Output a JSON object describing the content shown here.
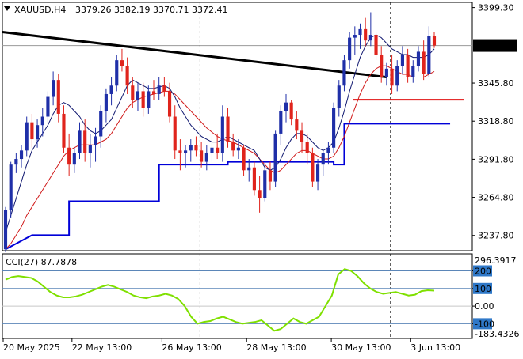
{
  "header": {
    "symbol_label": "XAUUSD,H4",
    "ohlc_label": "3379.26 3382.19 3370.71 3372.41"
  },
  "colors": {
    "bull": "#1f2fa8",
    "bear": "#e0241c",
    "grid": "#000000",
    "price_tag_bg": "#000000",
    "fast_ma": "#101870",
    "slow_ma": "#d01818",
    "support_line": "#0000d8",
    "trendline": "#000000",
    "resistance_line": "#e01010",
    "cci_line": "#7fe000",
    "level_tag_bg": "#2f78c8"
  },
  "chart_data": [
    {
      "type": "candlestick",
      "title": "XAUUSD,H4",
      "last_price": 3372.41,
      "last_price_label": "3372.41",
      "ylim": [
        3227,
        3403
      ],
      "y_ticks": [
        "3399.30",
        "3345.80",
        "3318.80",
        "3291.80",
        "3264.80",
        "3237.80"
      ],
      "x_tick_labels": [
        "20 May 2025",
        "22 May 13:00",
        "26 May 13:00",
        "28 May 13:00",
        "30 May 13:00",
        "3 Jun 13:00"
      ],
      "candles": [
        [
          3228,
          3258,
          3226,
          3256
        ],
        [
          3256,
          3290,
          3250,
          3288
        ],
        [
          3288,
          3296,
          3282,
          3292
        ],
        [
          3292,
          3302,
          3286,
          3298
        ],
        [
          3298,
          3322,
          3294,
          3318
        ],
        [
          3318,
          3324,
          3300,
          3306
        ],
        [
          3306,
          3320,
          3300,
          3316
        ],
        [
          3316,
          3328,
          3308,
          3322
        ],
        [
          3322,
          3340,
          3318,
          3336
        ],
        [
          3336,
          3354,
          3330,
          3348
        ],
        [
          3348,
          3352,
          3318,
          3324
        ],
        [
          3324,
          3330,
          3296,
          3300
        ],
        [
          3300,
          3310,
          3280,
          3288
        ],
        [
          3288,
          3300,
          3282,
          3296
        ],
        [
          3296,
          3318,
          3292,
          3312
        ],
        [
          3312,
          3320,
          3290,
          3296
        ],
        [
          3296,
          3310,
          3286,
          3302
        ],
        [
          3302,
          3314,
          3290,
          3308
        ],
        [
          3308,
          3330,
          3300,
          3326
        ],
        [
          3326,
          3342,
          3318,
          3338
        ],
        [
          3338,
          3350,
          3330,
          3344
        ],
        [
          3344,
          3366,
          3340,
          3362
        ],
        [
          3362,
          3370,
          3354,
          3358
        ],
        [
          3358,
          3364,
          3338,
          3344
        ],
        [
          3344,
          3350,
          3328,
          3334
        ],
        [
          3334,
          3346,
          3326,
          3340
        ],
        [
          3340,
          3346,
          3322,
          3328
        ],
        [
          3328,
          3344,
          3324,
          3340
        ],
        [
          3340,
          3348,
          3334,
          3338
        ],
        [
          3338,
          3350,
          3334,
          3344
        ],
        [
          3344,
          3350,
          3336,
          3340
        ],
        [
          3340,
          3346,
          3318,
          3322
        ],
        [
          3322,
          3330,
          3292,
          3298
        ],
        [
          3298,
          3306,
          3284,
          3296
        ],
        [
          3296,
          3302,
          3286,
          3298
        ],
        [
          3298,
          3306,
          3290,
          3302
        ],
        [
          3302,
          3308,
          3294,
          3298
        ],
        [
          3298,
          3304,
          3286,
          3290
        ],
        [
          3290,
          3302,
          3284,
          3296
        ],
        [
          3296,
          3308,
          3290,
          3300
        ],
        [
          3300,
          3310,
          3292,
          3296
        ],
        [
          3296,
          3330,
          3290,
          3322
        ],
        [
          3322,
          3328,
          3300,
          3304
        ],
        [
          3304,
          3310,
          3294,
          3298
        ],
        [
          3298,
          3306,
          3292,
          3300
        ],
        [
          3300,
          3302,
          3280,
          3284
        ],
        [
          3284,
          3292,
          3276,
          3286
        ],
        [
          3286,
          3290,
          3266,
          3270
        ],
        [
          3270,
          3280,
          3254,
          3264
        ],
        [
          3264,
          3288,
          3262,
          3284
        ],
        [
          3284,
          3290,
          3270,
          3276
        ],
        [
          3276,
          3312,
          3272,
          3310
        ],
        [
          3310,
          3330,
          3302,
          3326
        ],
        [
          3326,
          3338,
          3318,
          3332
        ],
        [
          3332,
          3334,
          3316,
          3320
        ],
        [
          3320,
          3326,
          3306,
          3312
        ],
        [
          3312,
          3318,
          3296,
          3304
        ],
        [
          3304,
          3310,
          3288,
          3296
        ],
        [
          3296,
          3300,
          3272,
          3276
        ],
        [
          3276,
          3292,
          3270,
          3288
        ],
        [
          3288,
          3298,
          3280,
          3296
        ],
        [
          3296,
          3304,
          3288,
          3300
        ],
        [
          3300,
          3332,
          3296,
          3328
        ],
        [
          3328,
          3348,
          3322,
          3344
        ],
        [
          3344,
          3366,
          3340,
          3362
        ],
        [
          3362,
          3382,
          3356,
          3378
        ],
        [
          3378,
          3386,
          3366,
          3380
        ],
        [
          3380,
          3388,
          3370,
          3384
        ],
        [
          3384,
          3392,
          3372,
          3376
        ],
        [
          3376,
          3396,
          3372,
          3380
        ],
        [
          3380,
          3382,
          3362,
          3366
        ],
        [
          3366,
          3372,
          3346,
          3350
        ],
        [
          3350,
          3360,
          3344,
          3356
        ],
        [
          3356,
          3366,
          3338,
          3344
        ],
        [
          3344,
          3362,
          3340,
          3358
        ],
        [
          3358,
          3372,
          3352,
          3366
        ],
        [
          3366,
          3370,
          3346,
          3350
        ],
        [
          3350,
          3362,
          3346,
          3358
        ],
        [
          3358,
          3372,
          3354,
          3368
        ],
        [
          3368,
          3376,
          3348,
          3352
        ],
        [
          3352,
          3386,
          3350,
          3379.26
        ],
        [
          3379.26,
          3382.19,
          3370.71,
          3372.41
        ]
      ],
      "fast_ma": [
        3240,
        3252,
        3264,
        3276,
        3288,
        3298,
        3304,
        3310,
        3316,
        3324,
        3330,
        3332,
        3330,
        3326,
        3322,
        3316,
        3312,
        3310,
        3312,
        3316,
        3320,
        3328,
        3336,
        3344,
        3348,
        3346,
        3344,
        3342,
        3342,
        3343,
        3344,
        3342,
        3336,
        3328,
        3322,
        3316,
        3312,
        3308,
        3306,
        3304,
        3304,
        3306,
        3308,
        3306,
        3304,
        3302,
        3300,
        3298,
        3292,
        3286,
        3284,
        3286,
        3292,
        3300,
        3306,
        3310,
        3310,
        3308,
        3304,
        3300,
        3298,
        3300,
        3304,
        3314,
        3326,
        3340,
        3352,
        3364,
        3372,
        3378,
        3380,
        3378,
        3374,
        3370,
        3368,
        3366,
        3366,
        3364,
        3364,
        3364,
        3366,
        3370
      ],
      "slow_ma": [
        3228,
        3232,
        3238,
        3244,
        3252,
        3258,
        3264,
        3270,
        3276,
        3282,
        3288,
        3294,
        3298,
        3300,
        3302,
        3302,
        3302,
        3302,
        3304,
        3306,
        3310,
        3316,
        3322,
        3328,
        3332,
        3334,
        3336,
        3337,
        3338,
        3339,
        3340,
        3340,
        3338,
        3334,
        3330,
        3326,
        3322,
        3318,
        3314,
        3311,
        3308,
        3306,
        3305,
        3304,
        3302,
        3300,
        3298,
        3296,
        3292,
        3288,
        3284,
        3282,
        3284,
        3288,
        3292,
        3296,
        3298,
        3298,
        3296,
        3294,
        3292,
        3292,
        3294,
        3300,
        3308,
        3318,
        3328,
        3338,
        3346,
        3352,
        3356,
        3358,
        3358,
        3356,
        3354,
        3352,
        3352,
        3350,
        3350,
        3350,
        3352,
        3354
      ],
      "support_steps": [
        {
          "from": 5,
          "to": 12,
          "value": 3238
        },
        {
          "from": 12,
          "to": 29,
          "value": 3262
        },
        {
          "from": 29,
          "to": 42,
          "value": 3288
        },
        {
          "from": 42,
          "to": 62,
          "value": 3290
        },
        {
          "from": 62,
          "to": 64,
          "value": 3288
        },
        {
          "from": 64,
          "to": 84,
          "value": 3317
        }
      ],
      "trendline": {
        "x": [
          0,
          72
        ],
        "y": [
          3382,
          3350
        ]
      },
      "resistance": {
        "x": [
          65,
          86
        ],
        "value": 3334
      }
    },
    {
      "type": "line",
      "title": "CCI(27)",
      "indicator_label": "CCI(27)",
      "value_label": "87.7878",
      "ylim": [
        -183.4326,
        296.3917
      ],
      "y_top_label": "296.3917",
      "y_bottom_label": "-183.4326",
      "levels": [
        {
          "value": 200,
          "label": "200"
        },
        {
          "value": 100,
          "label": "100"
        },
        {
          "value": 0,
          "label": "0.00"
        },
        {
          "value": -100,
          "label": "-100"
        }
      ],
      "values": [
        150,
        165,
        170,
        165,
        160,
        140,
        110,
        80,
        60,
        50,
        50,
        55,
        65,
        80,
        95,
        110,
        120,
        110,
        95,
        80,
        60,
        50,
        45,
        55,
        60,
        70,
        60,
        40,
        0,
        -60,
        -100,
        -90,
        -85,
        -70,
        -60,
        -75,
        -90,
        -100,
        -95,
        -90,
        -80,
        -110,
        -140,
        -130,
        -100,
        -70,
        -90,
        -100,
        -80,
        -60,
        0,
        60,
        180,
        210,
        200,
        170,
        130,
        100,
        80,
        70,
        75,
        80,
        70,
        60,
        65,
        85,
        90,
        87.7878
      ]
    }
  ]
}
